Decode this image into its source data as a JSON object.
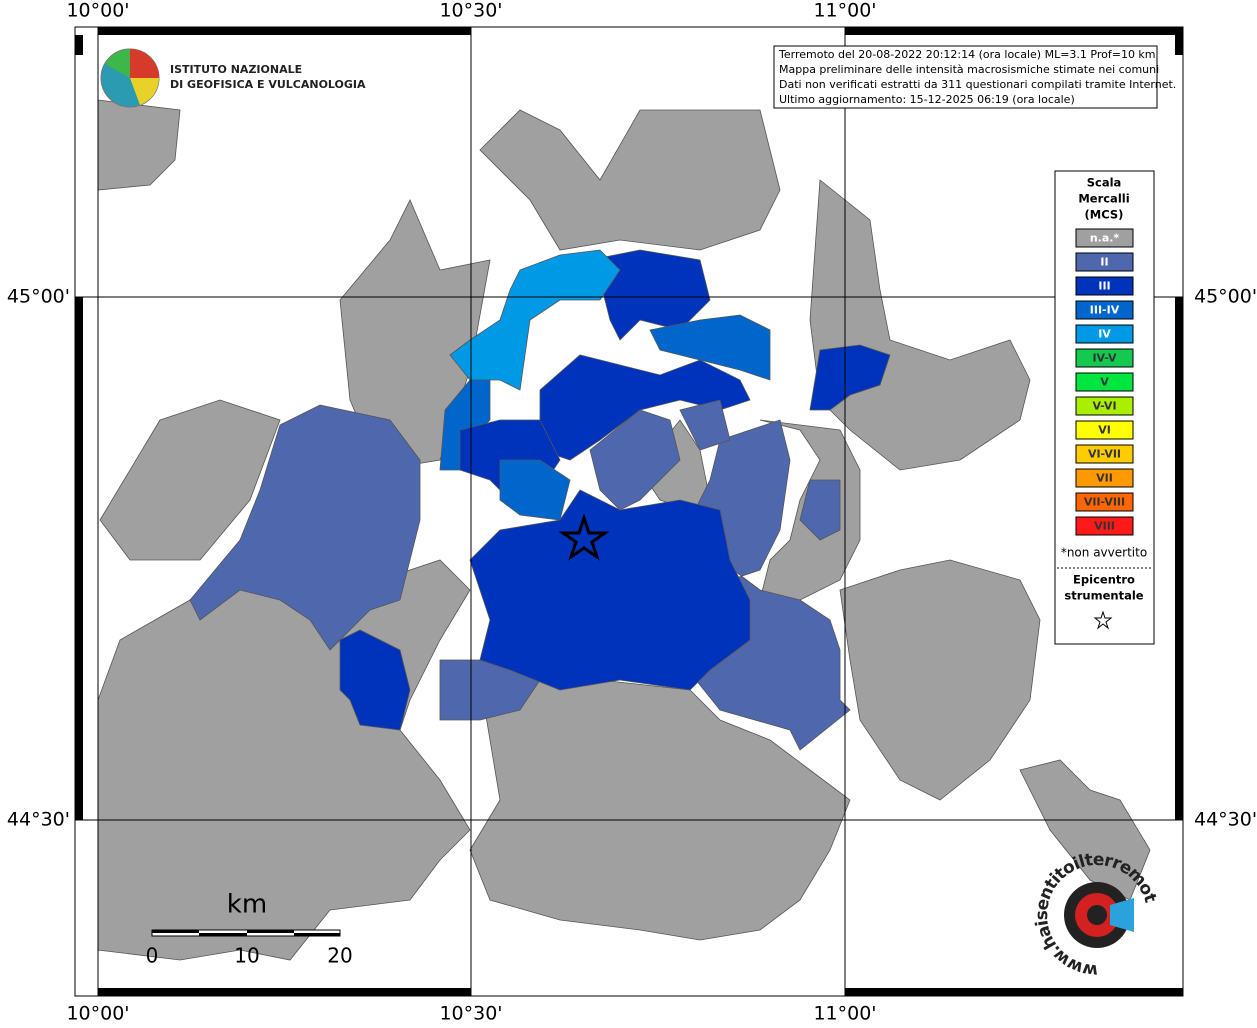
{
  "axes": {
    "top_labels": [
      "10°00'",
      "10°30'",
      "11°00'"
    ],
    "bottom_labels": [
      "10°00'",
      "10°30'",
      "11°00'"
    ],
    "left_labels": [
      "45°00'",
      "44°30'"
    ],
    "right_labels": [
      "45°00'",
      "44°30'"
    ]
  },
  "logo": {
    "line1": "ISTITUTO NAZIONALE",
    "line2": "DI GEOFISICA E VULCANOLOGIA"
  },
  "info": [
    "Terremoto del 20-08-2022 20:12:14 (ora locale) ML=3.1 Prof=10 km",
    "Mappa preliminare delle intensità macrosismiche stimate nei comuni",
    "Dati non verificati estratti da 311 questionari compilati tramite Internet.",
    "Ultimo aggiornamento: 15-12-2025 06:19 (ora locale)"
  ],
  "legend": {
    "title": [
      "Scala",
      "Mercalli",
      "(MCS)"
    ],
    "items": [
      {
        "label": "n.a.*",
        "color": "#a0a0a0"
      },
      {
        "label": "II",
        "color": "#4f67ad"
      },
      {
        "label": "III",
        "color": "#0033bb"
      },
      {
        "label": "III-IV",
        "color": "#0066cc"
      },
      {
        "label": "IV",
        "color": "#0099e6"
      },
      {
        "label": "IV-V",
        "color": "#14c850"
      },
      {
        "label": "V",
        "color": "#00e640"
      },
      {
        "label": "V-VI",
        "color": "#aaee00"
      },
      {
        "label": "VI",
        "color": "#ffff00"
      },
      {
        "label": "VI-VII",
        "color": "#ffcc00"
      },
      {
        "label": "VII",
        "color": "#ff9900"
      },
      {
        "label": "VII-VIII",
        "color": "#ff6600"
      },
      {
        "label": "VIII",
        "color": "#ff1a1a"
      }
    ],
    "note": "*non avvertito",
    "epicenter": [
      "Epicentro",
      "strumentale"
    ]
  },
  "scale_bar": {
    "unit": "km",
    "labels": [
      "0",
      "10",
      "20"
    ]
  },
  "watermark": "www.haisentitoilterremoto.it"
}
